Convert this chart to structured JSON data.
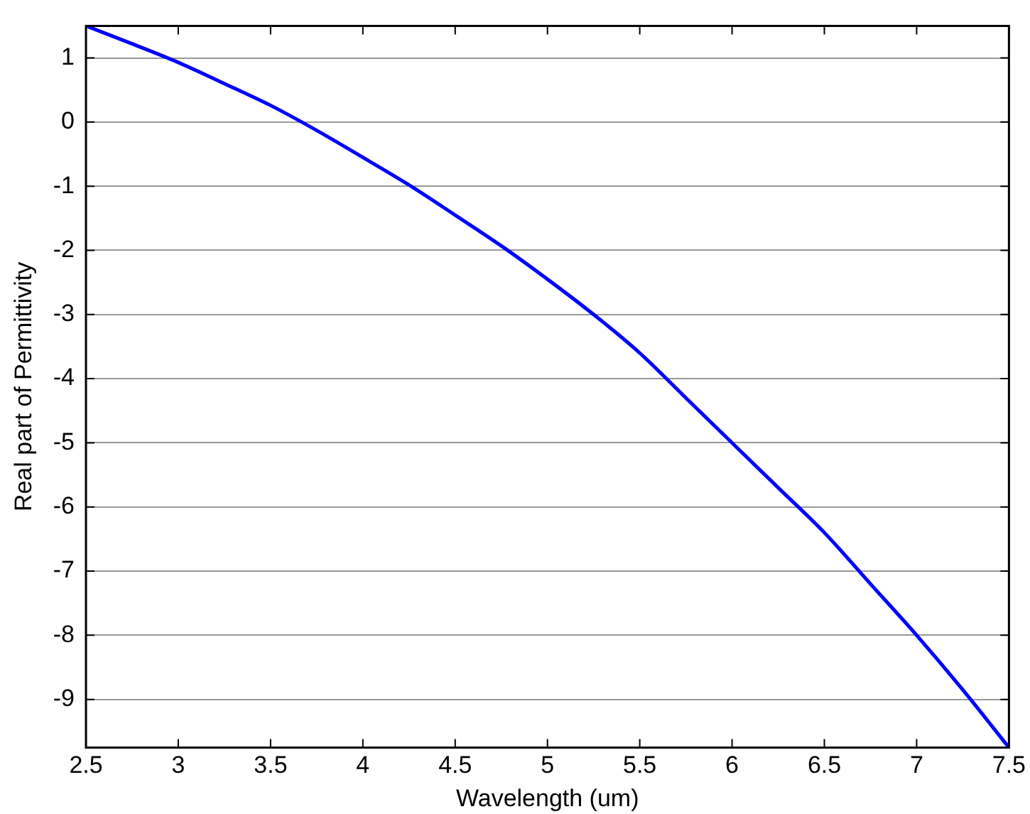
{
  "chart_data": {
    "type": "line",
    "xlabel": "Wavelength (um)",
    "ylabel": "Real part of Permittivity",
    "x": [
      2.5,
      2.75,
      3,
      3.25,
      3.5,
      3.75,
      4,
      4.25,
      4.5,
      4.75,
      5,
      5.25,
      5.5,
      5.75,
      6,
      6.25,
      6.5,
      6.75,
      7,
      7.25,
      7.5
    ],
    "series": [
      {
        "color": "#0000ff",
        "values": [
          1.5,
          1.22,
          0.93,
          0.6,
          0.26,
          -0.13,
          -0.55,
          -0.98,
          -1.45,
          -1.93,
          -2.45,
          -3.0,
          -3.6,
          -4.3,
          -5.0,
          -5.7,
          -6.4,
          -7.2,
          -8.0,
          -8.85,
          -9.75
        ]
      }
    ],
    "xlim": [
      2.5,
      7.5
    ],
    "xticks": [
      2.5,
      3,
      3.5,
      4,
      4.5,
      5,
      5.5,
      6,
      6.5,
      7,
      7.5
    ],
    "ylim": [
      -9.75,
      1.5
    ],
    "yticks": [
      -9,
      -8,
      -7,
      -6,
      -5,
      -4,
      -3,
      -2,
      -1,
      0,
      1
    ],
    "grid": "y",
    "legend": false,
    "marker": "none",
    "line_style": "solid"
  }
}
